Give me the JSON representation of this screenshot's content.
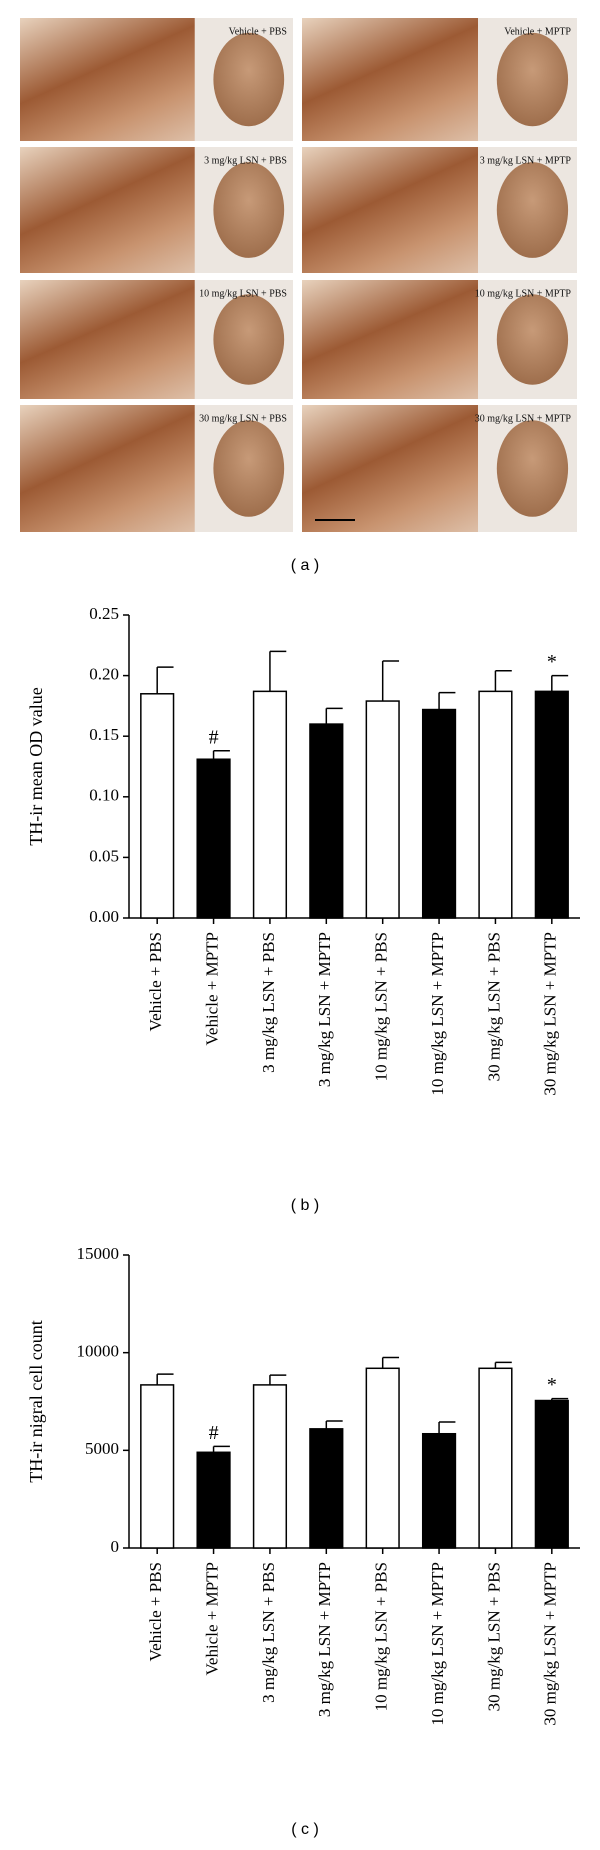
{
  "micrographs": {
    "labels": [
      "Vehicle + PBS",
      "Vehicle + MPTP",
      "3 mg/kg LSN + PBS",
      "3 mg/kg LSN + MPTP",
      "10 mg/kg LSN + PBS",
      "10 mg/kg LSN + MPTP",
      "30 mg/kg LSN + PBS",
      "30 mg/kg LSN + MPTP"
    ]
  },
  "panel_labels": [
    "( a )",
    "( b )",
    "( c )"
  ],
  "chart_data": [
    {
      "type": "bar",
      "ylabel": "TH-ir mean OD value",
      "categories": [
        "Vehicle + PBS",
        "Vehicle + MPTP",
        "3 mg/kg LSN + PBS",
        "3 mg/kg LSN + MPTP",
        "10 mg/kg LSN + PBS",
        "10 mg/kg LSN + MPTP",
        "30 mg/kg LSN + PBS",
        "30 mg/kg LSN + MPTP"
      ],
      "values": [
        0.185,
        0.131,
        0.187,
        0.16,
        0.179,
        0.172,
        0.187,
        0.187
      ],
      "errors": [
        0.022,
        0.007,
        0.033,
        0.013,
        0.033,
        0.014,
        0.017,
        0.013
      ],
      "colors": [
        "#ffffff",
        "#000000",
        "#ffffff",
        "#000000",
        "#ffffff",
        "#000000",
        "#ffffff",
        "#000000"
      ],
      "markers": [
        null,
        "#",
        null,
        null,
        null,
        null,
        null,
        "*"
      ],
      "ylim": [
        0,
        0.25
      ],
      "yticks": [
        {
          "value": 0,
          "label": "0.00"
        },
        {
          "value": 0.05,
          "label": "0.05"
        },
        {
          "value": 0.1,
          "label": "0.10"
        },
        {
          "value": 0.15,
          "label": "0.15"
        },
        {
          "value": 0.2,
          "label": "0.20"
        },
        {
          "value": 0.25,
          "label": "0.25"
        }
      ]
    },
    {
      "type": "bar",
      "ylabel": "TH-ir nigral cell count",
      "categories": [
        "Vehicle + PBS",
        "Vehicle + MPTP",
        "3 mg/kg LSN + PBS",
        "3 mg/kg LSN + MPTP",
        "10 mg/kg LSN + PBS",
        "10 mg/kg LSN + MPTP",
        "30 mg/kg LSN + PBS",
        "30 mg/kg LSN + MPTP"
      ],
      "values": [
        8350,
        4900,
        8350,
        6100,
        9200,
        5850,
        9200,
        7550
      ],
      "errors": [
        550,
        300,
        500,
        400,
        550,
        600,
        300,
        100
      ],
      "colors": [
        "#ffffff",
        "#000000",
        "#ffffff",
        "#000000",
        "#ffffff",
        "#000000",
        "#ffffff",
        "#000000"
      ],
      "markers": [
        null,
        "#",
        null,
        null,
        null,
        null,
        null,
        "*"
      ],
      "ylim": [
        0,
        15000
      ],
      "yticks": [
        0,
        5000,
        10000,
        15000
      ]
    }
  ]
}
